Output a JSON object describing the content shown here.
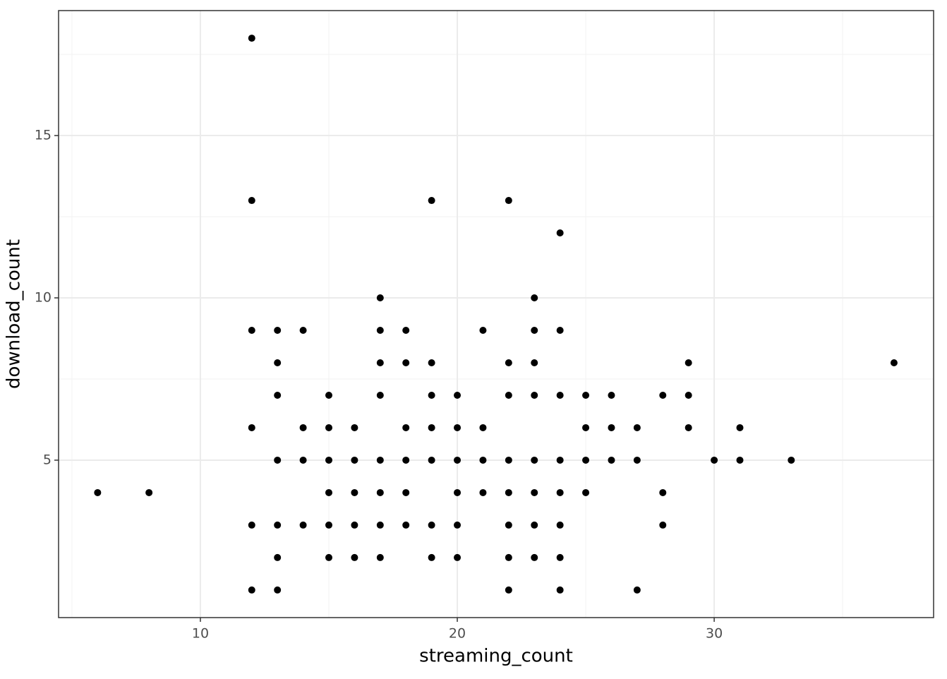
{
  "chart_data": {
    "type": "scatter",
    "x_label": "streaming_count",
    "y_label": "download_count",
    "x": [
      6,
      8,
      12,
      12,
      12,
      12,
      12,
      12,
      13,
      13,
      13,
      13,
      13,
      13,
      13,
      14,
      14,
      14,
      14,
      15,
      15,
      15,
      15,
      15,
      15,
      16,
      16,
      16,
      16,
      16,
      17,
      17,
      17,
      17,
      17,
      17,
      17,
      17,
      18,
      18,
      18,
      18,
      18,
      18,
      19,
      19,
      19,
      19,
      19,
      19,
      19,
      20,
      20,
      20,
      20,
      20,
      20,
      21,
      21,
      21,
      21,
      22,
      22,
      22,
      22,
      22,
      22,
      22,
      22,
      23,
      23,
      23,
      23,
      23,
      23,
      23,
      23,
      24,
      24,
      24,
      24,
      24,
      24,
      24,
      24,
      25,
      25,
      25,
      25,
      26,
      26,
      26,
      27,
      27,
      27,
      28,
      28,
      28,
      29,
      29,
      29,
      30,
      31,
      31,
      33,
      37
    ],
    "y": [
      4,
      4,
      18,
      13,
      9,
      6,
      3,
      1,
      9,
      8,
      7,
      5,
      3,
      2,
      1,
      9,
      6,
      5,
      3,
      7,
      6,
      5,
      4,
      3,
      2,
      6,
      5,
      4,
      3,
      2,
      10,
      9,
      8,
      7,
      5,
      4,
      3,
      2,
      9,
      8,
      6,
      5,
      4,
      3,
      13,
      8,
      7,
      6,
      5,
      3,
      2,
      7,
      6,
      5,
      4,
      3,
      2,
      9,
      6,
      5,
      4,
      13,
      8,
      7,
      5,
      4,
      3,
      2,
      1,
      10,
      9,
      8,
      7,
      5,
      4,
      3,
      2,
      12,
      9,
      7,
      5,
      4,
      3,
      2,
      1,
      7,
      6,
      5,
      4,
      7,
      6,
      5,
      6,
      5,
      1,
      7,
      4,
      3,
      8,
      7,
      6,
      5,
      6,
      5,
      5,
      8
    ],
    "color": "#000000",
    "xlim": [
      4.48,
      38.54
    ],
    "ylim": [
      0.15,
      18.85
    ],
    "xticks": [
      10,
      20,
      30
    ],
    "yticks": [
      5,
      10,
      15
    ],
    "x_minor_grid": [
      5,
      15,
      25,
      35
    ],
    "y_minor_grid": [
      7.5,
      12.5,
      17.5
    ],
    "grid": true
  }
}
